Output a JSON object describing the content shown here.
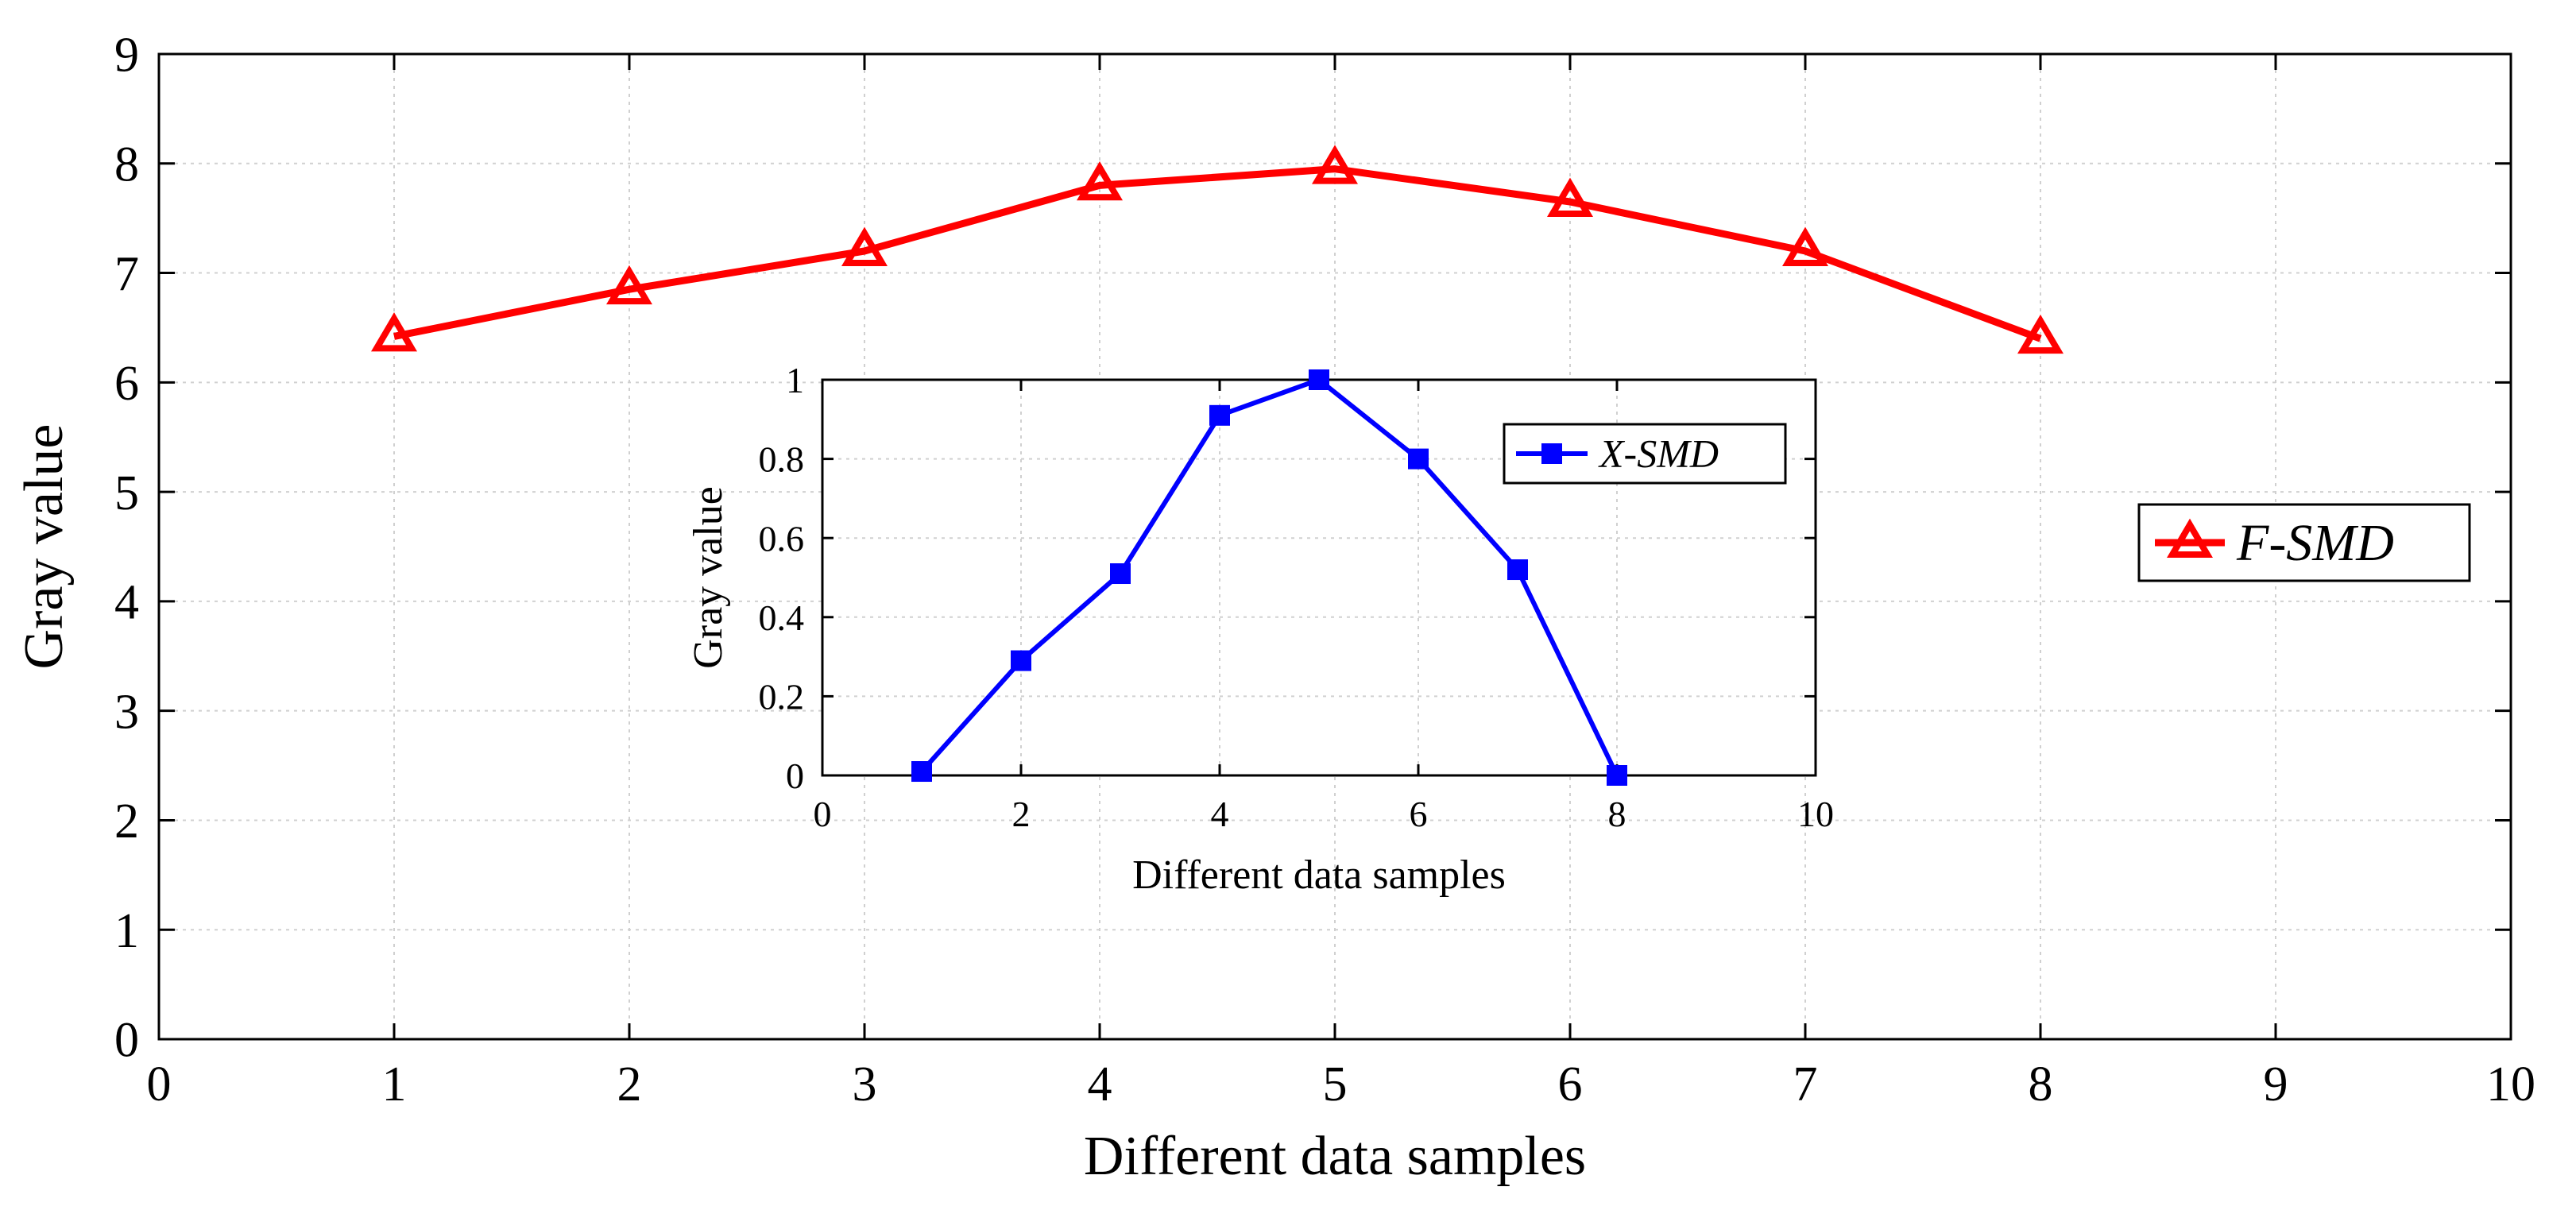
{
  "chart_data": [
    {
      "type": "line",
      "name": "main",
      "xlabel": "Different data samples",
      "ylabel": "Gray value",
      "xlim": [
        0,
        10
      ],
      "ylim": [
        0,
        9
      ],
      "xticks": [
        0,
        1,
        2,
        3,
        4,
        5,
        6,
        7,
        8,
        9,
        10
      ],
      "yticks": [
        0,
        1,
        2,
        3,
        4,
        5,
        6,
        7,
        8,
        9
      ],
      "grid": true,
      "legend_position": "right",
      "series": [
        {
          "name": "F-SMD",
          "color": "#ff0000",
          "marker": "triangle",
          "x": [
            1,
            2,
            3,
            4,
            5,
            6,
            7,
            8
          ],
          "y": [
            6.42,
            6.85,
            7.2,
            7.8,
            7.95,
            7.65,
            7.2,
            6.4
          ]
        }
      ]
    },
    {
      "type": "line",
      "name": "inset",
      "xlabel": "Different data samples",
      "ylabel": "Gray value",
      "xlim": [
        0,
        10
      ],
      "ylim": [
        0,
        1
      ],
      "xticks": [
        0,
        2,
        4,
        6,
        8,
        10
      ],
      "yticks": [
        0,
        0.2,
        0.4,
        0.6,
        0.8,
        1
      ],
      "grid": true,
      "legend_position": "top-right",
      "series": [
        {
          "name": "X-SMD",
          "color": "#0000ff",
          "marker": "square",
          "x": [
            1,
            2,
            3,
            4,
            5,
            6,
            7,
            8
          ],
          "y": [
            0.01,
            0.29,
            0.51,
            0.91,
            1.0,
            0.8,
            0.52,
            0.0
          ]
        }
      ]
    }
  ]
}
